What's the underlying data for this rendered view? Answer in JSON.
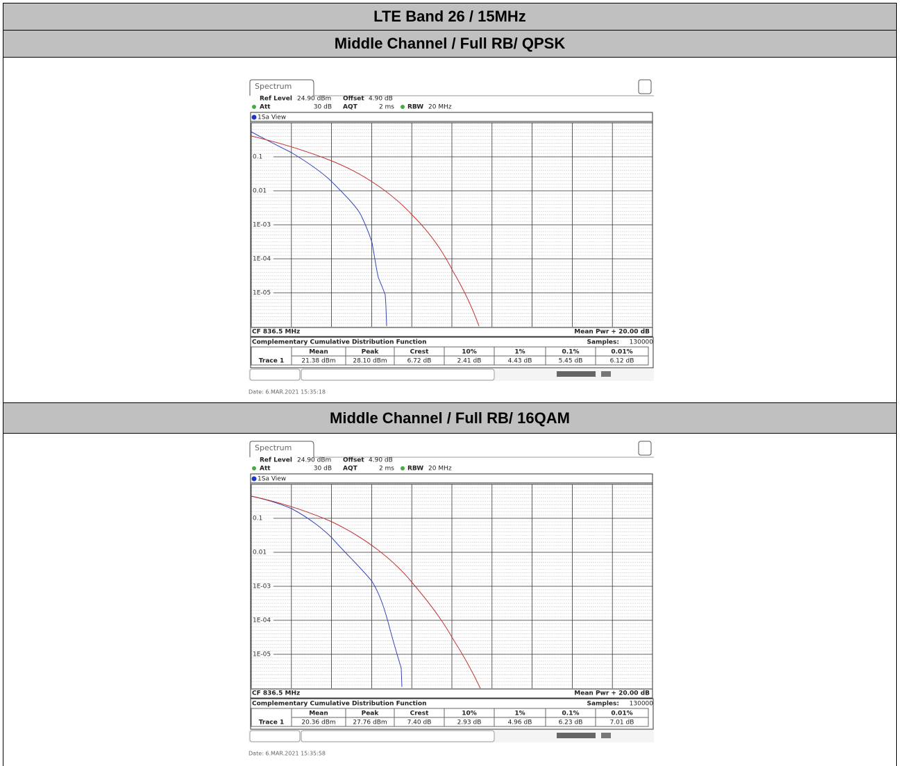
{
  "header": {
    "title": "LTE Band 26 / 15MHz"
  },
  "sections": [
    {
      "title": "Middle Channel / Full RB/ QPSK",
      "screen": {
        "tab": "Spectrum",
        "ref_level_label": "Ref Level",
        "ref_level": "24.90 dBm",
        "offset_label": "Offset",
        "offset": "4.90 dB",
        "att_label": "Att",
        "att": "30 dB",
        "aqt_label": "AQT",
        "aqt": "2 ms",
        "rbw_label": "RBW",
        "rbw": "20 MHz",
        "view": "1Sa View",
        "y_labels": [
          "0.1",
          "0.01",
          "1E-03",
          "1E-04",
          "1E-05"
        ],
        "cf": "CF 836.5 MHz",
        "mean_pwr": "Mean Pwr + 20.00 dB",
        "panel_title": "Complementary Cumulative Distribution Function",
        "samples_label": "Samples:",
        "samples": "130000",
        "columns": [
          "Mean",
          "Peak",
          "Crest",
          "10%",
          "1%",
          "0.1%",
          "0.01%"
        ],
        "row_label": "Trace 1",
        "row": [
          "21.38 dBm",
          "28.10 dBm",
          "6.72 dB",
          "2.41 dB",
          "4.43 dB",
          "5.45 dB",
          "6.12 dB"
        ],
        "date": "Date: 6.MAR.2021  15:35:18"
      }
    },
    {
      "title": "Middle Channel / Full RB/ 16QAM",
      "screen": {
        "tab": "Spectrum",
        "ref_level_label": "Ref Level",
        "ref_level": "24.90 dBm",
        "offset_label": "Offset",
        "offset": "4.90 dB",
        "att_label": "Att",
        "att": "30 dB",
        "aqt_label": "AQT",
        "aqt": "2 ms",
        "rbw_label": "RBW",
        "rbw": "20 MHz",
        "view": "1Sa View",
        "y_labels": [
          "0.1",
          "0.01",
          "1E-03",
          "1E-04",
          "1E-05"
        ],
        "cf": "CF 836.5 MHz",
        "mean_pwr": "Mean Pwr + 20.00 dB",
        "panel_title": "Complementary Cumulative Distribution Function",
        "samples_label": "Samples:",
        "samples": "130000",
        "columns": [
          "Mean",
          "Peak",
          "Crest",
          "10%",
          "1%",
          "0.1%",
          "0.01%"
        ],
        "row_label": "Trace 1",
        "row": [
          "20.36 dBm",
          "27.76 dBm",
          "7.40 dB",
          "2.93 dB",
          "4.96 dB",
          "6.23 dB",
          "7.01 dB"
        ],
        "date": "Date: 6.MAR.2021  15:35:58"
      }
    }
  ]
}
